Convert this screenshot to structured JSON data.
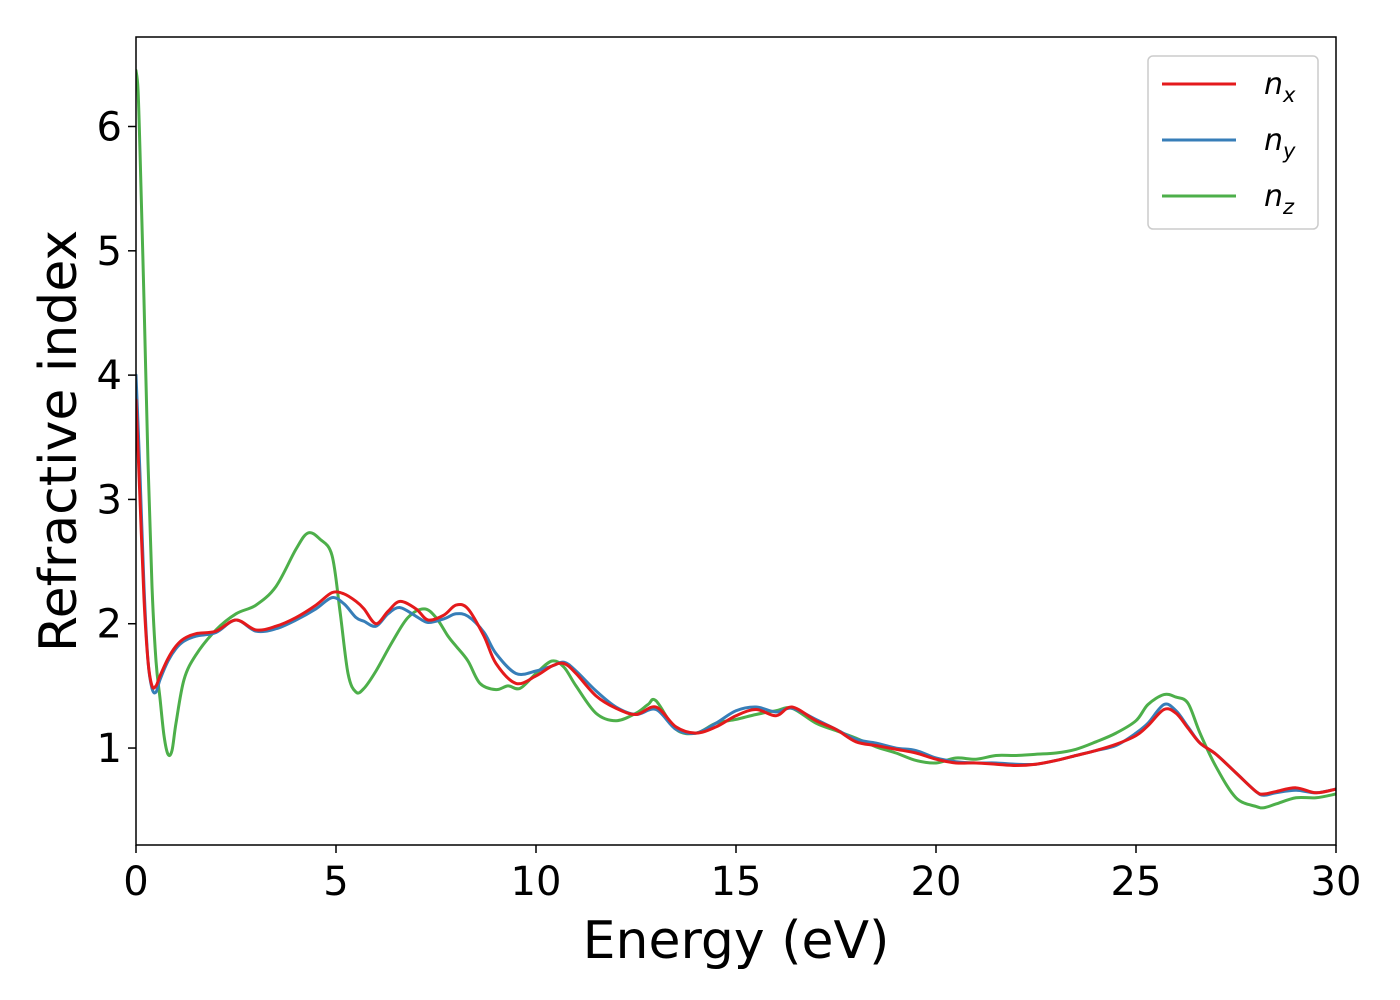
{
  "chart_data": {
    "type": "line",
    "xlabel": "Energy (eV)",
    "ylabel": "Refractive index",
    "xlim": [
      0,
      30
    ],
    "ylim": [
      0.22,
      6.72
    ],
    "xticks": [
      0,
      5,
      10,
      15,
      20,
      25,
      30
    ],
    "yticks": [
      1,
      2,
      3,
      4,
      5,
      6
    ],
    "grid": false,
    "legend_position": "top-right",
    "series": [
      {
        "name": "n",
        "subscript": "x",
        "color": "#e41a1c",
        "x": [
          0,
          0.1,
          0.2,
          0.3,
          0.4,
          0.5,
          0.6,
          0.8,
          1.0,
          1.2,
          1.5,
          2.0,
          2.5,
          3.0,
          3.5,
          4.0,
          4.5,
          4.9,
          5.2,
          5.5,
          5.7,
          6.0,
          6.3,
          6.6,
          7.0,
          7.3,
          7.7,
          8.0,
          8.3,
          8.7,
          9.0,
          9.5,
          10.0,
          10.4,
          10.7,
          11.0,
          11.5,
          12.0,
          12.5,
          13.0,
          13.5,
          14.0,
          14.5,
          15.0,
          15.5,
          16.0,
          16.4,
          17.0,
          17.5,
          18.0,
          18.5,
          19.0,
          19.5,
          20.0,
          20.5,
          21.0,
          21.5,
          22.0,
          22.5,
          23.0,
          23.5,
          24.0,
          24.5,
          25.0,
          25.3,
          25.7,
          26.0,
          26.3,
          26.6,
          27.0,
          27.5,
          28.0,
          28.2,
          28.5,
          29.0,
          29.5,
          30.0
        ],
        "values": [
          3.8,
          3.0,
          2.2,
          1.7,
          1.5,
          1.5,
          1.58,
          1.72,
          1.82,
          1.88,
          1.92,
          1.94,
          2.03,
          1.95,
          1.98,
          2.05,
          2.15,
          2.25,
          2.24,
          2.18,
          2.12,
          2.0,
          2.1,
          2.18,
          2.12,
          2.03,
          2.07,
          2.15,
          2.12,
          1.9,
          1.68,
          1.52,
          1.58,
          1.66,
          1.68,
          1.6,
          1.42,
          1.32,
          1.27,
          1.33,
          1.17,
          1.12,
          1.17,
          1.26,
          1.31,
          1.26,
          1.33,
          1.22,
          1.15,
          1.05,
          1.02,
          0.99,
          0.96,
          0.91,
          0.88,
          0.88,
          0.87,
          0.86,
          0.87,
          0.9,
          0.94,
          0.98,
          1.03,
          1.1,
          1.18,
          1.31,
          1.28,
          1.16,
          1.04,
          0.95,
          0.8,
          0.65,
          0.63,
          0.65,
          0.68,
          0.64,
          0.67
        ]
      },
      {
        "name": "n",
        "subscript": "y",
        "color": "#377eb8",
        "x": [
          0,
          0.1,
          0.2,
          0.3,
          0.4,
          0.5,
          0.6,
          0.8,
          1.0,
          1.2,
          1.5,
          2.0,
          2.5,
          3.0,
          3.5,
          4.0,
          4.5,
          4.9,
          5.2,
          5.5,
          5.7,
          6.0,
          6.3,
          6.6,
          7.0,
          7.3,
          7.7,
          8.0,
          8.3,
          8.7,
          9.0,
          9.5,
          10.0,
          10.4,
          10.7,
          11.0,
          11.5,
          12.0,
          12.5,
          13.0,
          13.5,
          14.0,
          14.5,
          15.0,
          15.5,
          16.0,
          16.4,
          17.0,
          17.5,
          18.0,
          18.5,
          19.0,
          19.5,
          20.0,
          20.5,
          21.0,
          21.5,
          22.0,
          22.5,
          23.0,
          23.5,
          24.0,
          24.5,
          25.0,
          25.3,
          25.7,
          26.0,
          26.3,
          26.6,
          27.0,
          27.5,
          28.0,
          28.2,
          28.5,
          29.0,
          29.5,
          30.0
        ],
        "values": [
          4.0,
          3.2,
          2.3,
          1.7,
          1.48,
          1.45,
          1.55,
          1.7,
          1.8,
          1.86,
          1.9,
          1.93,
          2.03,
          1.94,
          1.96,
          2.03,
          2.12,
          2.21,
          2.16,
          2.05,
          2.02,
          1.98,
          2.08,
          2.13,
          2.06,
          2.01,
          2.04,
          2.08,
          2.06,
          1.93,
          1.76,
          1.6,
          1.62,
          1.66,
          1.69,
          1.62,
          1.46,
          1.33,
          1.27,
          1.31,
          1.15,
          1.12,
          1.2,
          1.3,
          1.33,
          1.29,
          1.32,
          1.23,
          1.15,
          1.07,
          1.04,
          1.0,
          0.98,
          0.92,
          0.89,
          0.88,
          0.88,
          0.87,
          0.87,
          0.9,
          0.94,
          0.98,
          1.02,
          1.12,
          1.2,
          1.35,
          1.3,
          1.17,
          1.04,
          0.95,
          0.8,
          0.65,
          0.62,
          0.64,
          0.66,
          0.64,
          0.67
        ]
      },
      {
        "name": "n",
        "subscript": "z",
        "color": "#4daf4a",
        "x": [
          0,
          0.05,
          0.1,
          0.2,
          0.3,
          0.4,
          0.5,
          0.6,
          0.7,
          0.8,
          0.9,
          1.0,
          1.2,
          1.5,
          2.0,
          2.5,
          3.0,
          3.5,
          4.0,
          4.3,
          4.6,
          4.9,
          5.1,
          5.3,
          5.5,
          5.7,
          6.0,
          6.4,
          6.8,
          7.2,
          7.5,
          7.8,
          8.0,
          8.3,
          8.6,
          9.0,
          9.3,
          9.6,
          10.0,
          10.4,
          10.7,
          11.0,
          11.5,
          12.0,
          12.5,
          12.8,
          13.0,
          13.5,
          14.0,
          14.5,
          15.0,
          15.5,
          16.0,
          16.4,
          17.0,
          17.5,
          18.0,
          18.5,
          19.0,
          19.5,
          20.0,
          20.5,
          21.0,
          21.5,
          22.0,
          22.5,
          23.0,
          23.5,
          24.0,
          24.5,
          25.0,
          25.3,
          25.7,
          26.0,
          26.3,
          26.6,
          27.0,
          27.5,
          28.0,
          28.2,
          28.5,
          29.0,
          29.5,
          30.0
        ],
        "values": [
          6.45,
          6.3,
          5.8,
          4.6,
          3.3,
          2.3,
          1.7,
          1.4,
          1.1,
          0.95,
          0.98,
          1.2,
          1.55,
          1.75,
          1.95,
          2.08,
          2.15,
          2.3,
          2.6,
          2.73,
          2.68,
          2.55,
          2.1,
          1.6,
          1.45,
          1.48,
          1.62,
          1.85,
          2.05,
          2.12,
          2.05,
          1.9,
          1.82,
          1.7,
          1.52,
          1.47,
          1.5,
          1.48,
          1.6,
          1.7,
          1.65,
          1.5,
          1.28,
          1.22,
          1.28,
          1.35,
          1.38,
          1.15,
          1.12,
          1.2,
          1.23,
          1.27,
          1.3,
          1.32,
          1.2,
          1.14,
          1.08,
          1.01,
          0.96,
          0.9,
          0.88,
          0.92,
          0.91,
          0.94,
          0.94,
          0.95,
          0.96,
          0.99,
          1.05,
          1.12,
          1.22,
          1.35,
          1.43,
          1.41,
          1.36,
          1.12,
          0.85,
          0.6,
          0.53,
          0.52,
          0.55,
          0.6,
          0.6,
          0.63
        ]
      }
    ]
  }
}
